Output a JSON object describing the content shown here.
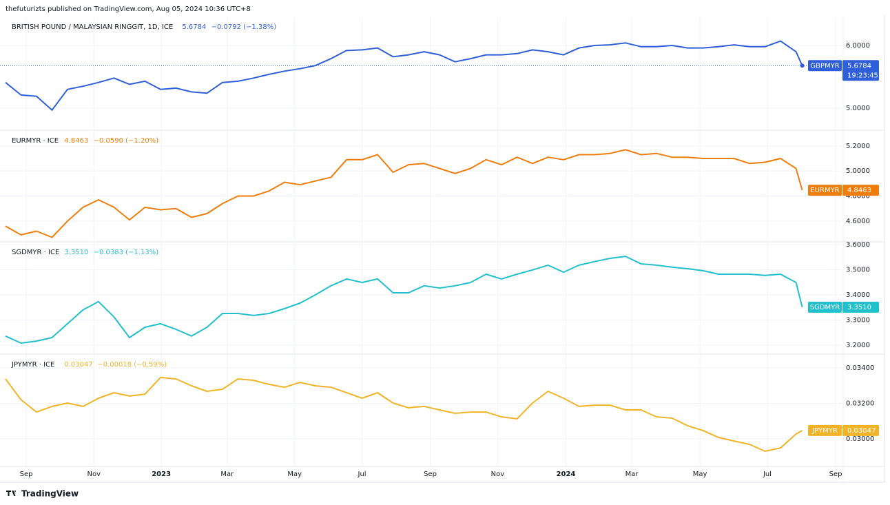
{
  "header": {
    "text": "thefuturizts published on TradingView.com, Aug 05, 2024 10:36 UTC+8"
  },
  "footer": {
    "brand": "TradingView"
  },
  "chart_data": [
    {
      "type": "line",
      "title": "BRITISH POUND / MALAYSIAN RINGGIT, 1D, ICE",
      "last_price_label": "5.6784",
      "change": "−0.0792 (−1.38%)",
      "countdown": "19:23:45",
      "price_line": true,
      "grid": true,
      "x": [
        0,
        2,
        4,
        6,
        8,
        10,
        12,
        14,
        16,
        18,
        20,
        22,
        24,
        26,
        28,
        30,
        32,
        34,
        36,
        38,
        40,
        42,
        44,
        46,
        48,
        50,
        52,
        54,
        56,
        58,
        60,
        62,
        64,
        66,
        68,
        70,
        72,
        74,
        76,
        78,
        80,
        82,
        84,
        86,
        88,
        90,
        92,
        94,
        96,
        98,
        100,
        102,
        102.8
      ],
      "series": [
        {
          "name": "GBPMYR",
          "color": "#2f5fd8",
          "values": [
            5.41,
            5.21,
            5.19,
            4.97,
            5.3,
            5.35,
            5.41,
            5.48,
            5.38,
            5.43,
            5.3,
            5.32,
            5.26,
            5.24,
            5.41,
            5.43,
            5.48,
            5.54,
            5.59,
            5.63,
            5.68,
            5.79,
            5.92,
            5.93,
            5.96,
            5.82,
            5.85,
            5.9,
            5.85,
            5.74,
            5.79,
            5.85,
            5.85,
            5.87,
            5.93,
            5.9,
            5.85,
            5.96,
            6.0,
            6.01,
            6.04,
            5.98,
            5.98,
            6.0,
            5.96,
            5.96,
            5.98,
            6.01,
            5.98,
            5.98,
            6.07,
            5.9,
            5.6784
          ]
        }
      ],
      "xlim": [
        0,
        107.9
      ],
      "ylim": [
        4.66,
        6.45
      ],
      "yticks": [
        {
          "value": 5,
          "label": "5.0000"
        },
        {
          "value": 6,
          "label": "6.0000"
        }
      ]
    },
    {
      "type": "line",
      "title": "EURMYR · ICE",
      "last_price_label": "4.8463",
      "change": "−0.0590 (−1.20%)",
      "grid": true,
      "x": [
        0,
        2,
        4,
        6,
        8,
        10,
        12,
        14,
        16,
        18,
        20,
        22,
        24,
        26,
        28,
        30,
        32,
        34,
        36,
        38,
        40,
        42,
        44,
        46,
        48,
        50,
        52,
        54,
        56,
        58,
        60,
        62,
        64,
        66,
        68,
        70,
        72,
        74,
        76,
        78,
        80,
        82,
        84,
        86,
        88,
        90,
        92,
        94,
        96,
        98,
        100,
        102,
        102.8
      ],
      "series": [
        {
          "name": "EURMYR",
          "color": "#ef7d0d",
          "values": [
            4.56,
            4.49,
            4.52,
            4.47,
            4.6,
            4.71,
            4.77,
            4.71,
            4.61,
            4.71,
            4.69,
            4.7,
            4.63,
            4.66,
            4.74,
            4.8,
            4.8,
            4.84,
            4.91,
            4.89,
            4.92,
            4.95,
            5.09,
            5.09,
            5.13,
            4.99,
            5.05,
            5.06,
            5.02,
            4.98,
            5.02,
            5.09,
            5.05,
            5.11,
            5.06,
            5.11,
            5.09,
            5.13,
            5.13,
            5.14,
            5.17,
            5.13,
            5.14,
            5.11,
            5.11,
            5.1,
            5.1,
            5.1,
            5.06,
            5.07,
            5.1,
            5.02,
            4.8463
          ]
        }
      ],
      "xlim": [
        0,
        107.9
      ],
      "ylim": [
        4.44,
        5.32
      ],
      "yticks": [
        {
          "value": 4.6,
          "label": "4.6000"
        },
        {
          "value": 4.8,
          "label": "4.8000"
        },
        {
          "value": 5,
          "label": "5.0000"
        },
        {
          "value": 5.2,
          "label": "5.2000"
        }
      ]
    },
    {
      "type": "line",
      "title": "SGDMYR · ICE",
      "last_price_label": "3.3510",
      "change": "−0.0383 (−1.13%)",
      "grid": true,
      "x": [
        0,
        2,
        4,
        6,
        8,
        10,
        12,
        14,
        16,
        18,
        20,
        22,
        24,
        26,
        28,
        30,
        32,
        34,
        36,
        38,
        40,
        42,
        44,
        46,
        48,
        50,
        52,
        54,
        56,
        58,
        60,
        62,
        64,
        66,
        68,
        70,
        72,
        74,
        76,
        78,
        80,
        82,
        84,
        86,
        88,
        90,
        92,
        94,
        96,
        98,
        100,
        102,
        102.8
      ],
      "series": [
        {
          "name": "SGDMYR",
          "color": "#22bfcc",
          "values": [
            3.236,
            3.208,
            3.216,
            3.23,
            3.285,
            3.34,
            3.373,
            3.312,
            3.23,
            3.271,
            3.285,
            3.263,
            3.236,
            3.271,
            3.326,
            3.326,
            3.318,
            3.326,
            3.345,
            3.367,
            3.4,
            3.436,
            3.463,
            3.449,
            3.463,
            3.408,
            3.408,
            3.436,
            3.427,
            3.436,
            3.449,
            3.482,
            3.463,
            3.482,
            3.499,
            3.518,
            3.49,
            3.518,
            3.532,
            3.545,
            3.553,
            3.523,
            3.518,
            3.51,
            3.504,
            3.496,
            3.482,
            3.482,
            3.482,
            3.477,
            3.482,
            3.449,
            3.351
          ]
        }
      ],
      "xlim": [
        0,
        107.9
      ],
      "ylim": [
        3.167,
        3.608
      ],
      "yticks": [
        {
          "value": 3.2,
          "label": "3.2000"
        },
        {
          "value": 3.3,
          "label": "3.3000"
        },
        {
          "value": 3.4,
          "label": "3.4000"
        },
        {
          "value": 3.5,
          "label": "3.5000"
        },
        {
          "value": 3.6,
          "label": "3.6000"
        }
      ]
    },
    {
      "type": "line",
      "title": "JPYMYR · ICE",
      "last_price_label": "0.03047",
      "change": "−0.00018 (−0.59%)",
      "grid": true,
      "x": [
        0,
        2,
        4,
        6,
        8,
        10,
        12,
        14,
        16,
        18,
        20,
        22,
        24,
        26,
        28,
        30,
        32,
        34,
        36,
        38,
        40,
        42,
        44,
        46,
        48,
        50,
        52,
        54,
        56,
        58,
        60,
        62,
        64,
        66,
        68,
        70,
        72,
        74,
        76,
        78,
        80,
        82,
        84,
        86,
        88,
        90,
        92,
        94,
        96,
        98,
        100,
        102,
        102.8
      ],
      "series": [
        {
          "name": "JPYMYR",
          "color": "#f0b429",
          "values": [
            0.03338,
            0.03221,
            0.03151,
            0.03183,
            0.03202,
            0.03183,
            0.03229,
            0.0326,
            0.03241,
            0.03252,
            0.03346,
            0.03338,
            0.03299,
            0.03268,
            0.0328,
            0.03338,
            0.0333,
            0.03307,
            0.03291,
            0.03318,
            0.03299,
            0.03291,
            0.0326,
            0.03229,
            0.0326,
            0.03202,
            0.03175,
            0.03183,
            0.03163,
            0.03144,
            0.03151,
            0.03151,
            0.03124,
            0.03113,
            0.03202,
            0.03268,
            0.03229,
            0.03183,
            0.0319,
            0.0319,
            0.03163,
            0.03163,
            0.03124,
            0.03117,
            0.03074,
            0.03047,
            0.03008,
            0.02988,
            0.02969,
            0.0293,
            0.02949,
            0.03027,
            0.03047
          ]
        }
      ],
      "xlim": [
        0,
        107.9
      ],
      "ylim": [
        0.028485,
        0.034738
      ],
      "yticks": [
        {
          "value": 0.03,
          "label": "0.03000"
        },
        {
          "value": 0.032,
          "label": "0.03200"
        },
        {
          "value": 0.034,
          "label": "0.03400"
        }
      ],
      "xticks": [
        {
          "value": 2.67,
          "label": "Sep"
        },
        {
          "value": 11.4,
          "label": "Nov"
        },
        {
          "value": 20.1,
          "label": "2023"
        },
        {
          "value": 28.6,
          "label": "Mar"
        },
        {
          "value": 37.3,
          "label": "May"
        },
        {
          "value": 46.0,
          "label": "Jul"
        },
        {
          "value": 54.8,
          "label": "Sep"
        },
        {
          "value": 63.5,
          "label": "Nov"
        },
        {
          "value": 72.3,
          "label": "2024"
        },
        {
          "value": 80.8,
          "label": "Mar"
        },
        {
          "value": 89.6,
          "label": "May"
        },
        {
          "value": 98.3,
          "label": "Jul"
        },
        {
          "value": 107.1,
          "label": "Sep"
        }
      ]
    }
  ]
}
